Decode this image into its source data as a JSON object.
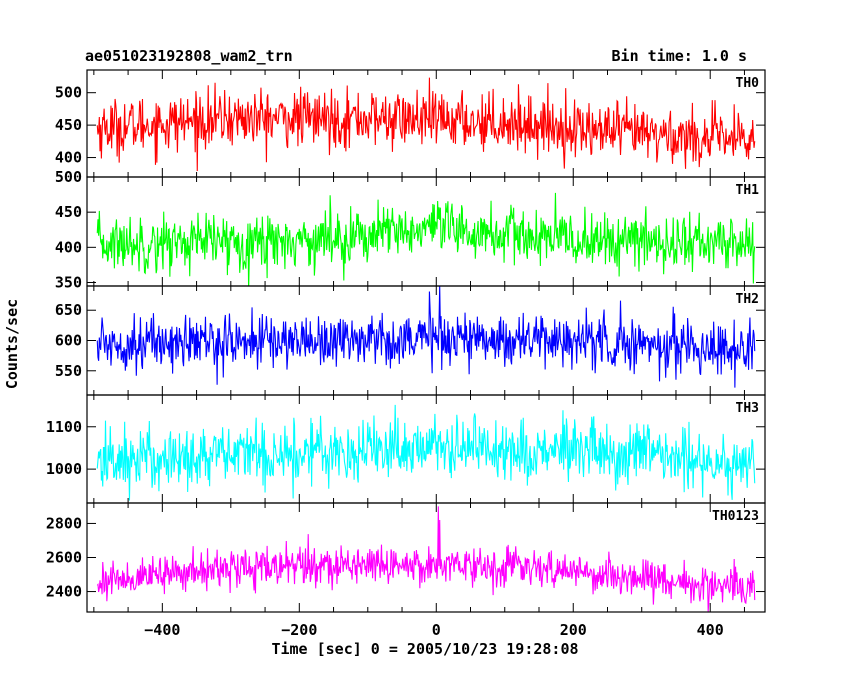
{
  "chart_data": {
    "type": "line",
    "title": "ae051023192808_wam2_trn",
    "bin_time_label": "Bin time: 1.0 s",
    "xlabel": "Time [sec] 0 = 2005/10/23 19:28:08",
    "ylabel": "Counts/sec",
    "xlim": [
      -510,
      480
    ],
    "x_ticks": [
      -400,
      -200,
      0,
      200,
      400
    ],
    "x_tick_labels": [
      "−400",
      "−200",
      "0",
      "200",
      "400"
    ],
    "x_start": -495,
    "x_end": 465,
    "bin_time": 1.0,
    "panels": [
      {
        "name": "TH0",
        "color": "#ff0000",
        "ylim": [
          370,
          535
        ],
        "y_ticks": [
          400,
          450,
          500
        ],
        "y_tick_labels": [
          "400",
          "450",
          "500"
        ],
        "trend": [
          [
            -495,
            445
          ],
          [
            -300,
            460
          ],
          [
            -100,
            460
          ],
          [
            100,
            455
          ],
          [
            250,
            440
          ],
          [
            465,
            425
          ]
        ],
        "noise_sd": 22,
        "spikes": []
      },
      {
        "name": "TH1",
        "color": "#00ff00",
        "ylim": [
          345,
          500
        ],
        "y_ticks": [
          350,
          400,
          450,
          500
        ],
        "y_tick_labels": [
          "350",
          "400",
          "450",
          "500"
        ],
        "trend": [
          [
            -495,
            405
          ],
          [
            -200,
            410
          ],
          [
            0,
            425
          ],
          [
            200,
            410
          ],
          [
            465,
            405
          ]
        ],
        "noise_sd": 20,
        "spikes": []
      },
      {
        "name": "TH2",
        "color": "#0000ff",
        "ylim": [
          510,
          690
        ],
        "y_ticks": [
          550,
          600,
          650
        ],
        "y_tick_labels": [
          "550",
          "600",
          "650"
        ],
        "trend": [
          [
            -495,
            595
          ],
          [
            -200,
            600
          ],
          [
            0,
            605
          ],
          [
            200,
            600
          ],
          [
            465,
            585
          ]
        ],
        "noise_sd": 22,
        "spikes": [
          [
            5,
            690
          ]
        ]
      },
      {
        "name": "TH3",
        "color": "#00ffff",
        "ylim": [
          920,
          1175
        ],
        "y_ticks": [
          1000,
          1100
        ],
        "y_tick_labels": [
          "1000",
          "1100"
        ],
        "trend": [
          [
            -495,
            1020
          ],
          [
            -200,
            1040
          ],
          [
            0,
            1055
          ],
          [
            200,
            1040
          ],
          [
            465,
            1015
          ]
        ],
        "noise_sd": 38,
        "spikes": []
      },
      {
        "name": "TH0123",
        "color": "#ff00ff",
        "ylim": [
          2280,
          2920
        ],
        "y_ticks": [
          2400,
          2600,
          2800
        ],
        "y_tick_labels": [
          "2400",
          "2600",
          "2800"
        ],
        "trend": [
          [
            -495,
            2460
          ],
          [
            -300,
            2540
          ],
          [
            -100,
            2560
          ],
          [
            50,
            2560
          ],
          [
            250,
            2500
          ],
          [
            465,
            2410
          ]
        ],
        "noise_sd": 55,
        "spikes": [
          [
            3,
            2900
          ],
          [
            5,
            2820
          ]
        ]
      }
    ]
  }
}
